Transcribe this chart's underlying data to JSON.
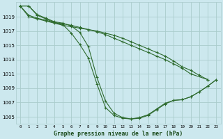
{
  "title": "Graphe pression niveau de la mer (hPa)",
  "bg_color": "#cce8ee",
  "grid_color": "#aacccc",
  "line_color": "#2d6a2d",
  "xlim": [
    -0.5,
    23.5
  ],
  "ylim": [
    1004.0,
    1021.0
  ],
  "yticks": [
    1005,
    1007,
    1009,
    1011,
    1013,
    1015,
    1017,
    1019
  ],
  "xticks": [
    0,
    1,
    2,
    3,
    4,
    5,
    6,
    7,
    8,
    9,
    10,
    11,
    12,
    13,
    14,
    15,
    16,
    17,
    18,
    19,
    20,
    21,
    22,
    23
  ],
  "s1": [
    1020.5,
    1020.5,
    1019.2,
    1018.7,
    1018.2,
    1017.9,
    1016.7,
    1015.1,
    1013.2,
    1009.6,
    1006.3,
    1005.2,
    1004.8,
    1004.7,
    1004.8,
    1005.2,
    1006.0,
    1006.8,
    1007.3,
    1007.4,
    1007.8,
    1008.5,
    1009.3,
    1010.2
  ],
  "s2": [
    1020.5,
    1020.5,
    1019.3,
    1018.8,
    1018.3,
    1018.1,
    1017.7,
    1016.8,
    1014.8,
    1010.5,
    1007.2,
    1005.5,
    1004.9,
    1004.7,
    1004.9,
    1005.3,
    1006.1,
    1006.9,
    1007.3,
    1007.4,
    1007.8,
    1008.5,
    1009.3,
    1010.2
  ],
  "s3_x": [
    0,
    1,
    2,
    3,
    4,
    5,
    6,
    7,
    8,
    9,
    10,
    11,
    12,
    13,
    14,
    15,
    16,
    17,
    18,
    19,
    20,
    22
  ],
  "s3": [
    1020.5,
    1019.2,
    1018.8,
    1018.5,
    1018.2,
    1018.0,
    1017.8,
    1017.5,
    1017.2,
    1016.9,
    1016.5,
    1016.0,
    1015.5,
    1015.0,
    1014.5,
    1014.0,
    1013.5,
    1013.0,
    1012.4,
    1011.8,
    1011.0,
    1010.2
  ],
  "s4_x": [
    0,
    1,
    2,
    3,
    4,
    5,
    6,
    7,
    8,
    9,
    10,
    11,
    12,
    13,
    14,
    15,
    16,
    17,
    18,
    19,
    20,
    21,
    22
  ],
  "s4": [
    1020.5,
    1019.0,
    1018.7,
    1018.4,
    1018.1,
    1017.8,
    1017.6,
    1017.4,
    1017.2,
    1017.0,
    1016.7,
    1016.4,
    1016.0,
    1015.5,
    1015.0,
    1014.5,
    1014.0,
    1013.5,
    1012.8,
    1012.0,
    1011.5,
    1010.8,
    1010.2
  ]
}
